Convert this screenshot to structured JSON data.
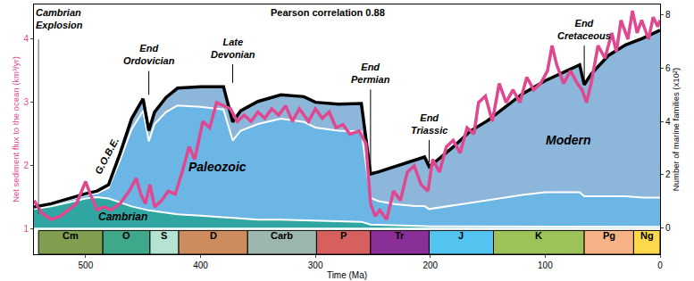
{
  "chart_data": {
    "type": "area",
    "stacked": true,
    "grid": false,
    "x_label": "Time (Ma)",
    "y_label": "Net sediment flux to the ocean (km³/yr)",
    "y2_label": "Number of marine families (x10²)",
    "xlim": [
      545,
      0
    ],
    "xticks": [
      500,
      400,
      300,
      200,
      100,
      0
    ],
    "ylim": [
      0.6,
      4.55
    ],
    "yticks": [
      1,
      2,
      3,
      4
    ],
    "y2lim": [
      -1.0,
      8.4
    ],
    "y2ticks": [
      0,
      2,
      4,
      6,
      8
    ],
    "annotations": [
      "Cambrian\nExplosion",
      "G.O.B.E.",
      "End\nOrdovician",
      "Late\nDevonian",
      "End\nPermian",
      "End\nTriassic",
      "End\nCretaceous",
      "Pearson correlation 0.88"
    ],
    "periods": [
      {
        "label": "Cm",
        "start": 541,
        "end": 485,
        "color": "#7f9e4f"
      },
      {
        "label": "O",
        "start": 485,
        "end": 444,
        "color": "#3fa88a"
      },
      {
        "label": "S",
        "start": 444,
        "end": 419,
        "color": "#b5e3d2"
      },
      {
        "label": "D",
        "start": 419,
        "end": 359,
        "color": "#cc8c5e"
      },
      {
        "label": "Carb",
        "start": 359,
        "end": 299,
        "color": "#9bb7ae"
      },
      {
        "label": "P",
        "start": 299,
        "end": 252,
        "color": "#d6605e"
      },
      {
        "label": "Tr",
        "start": 252,
        "end": 201,
        "color": "#8a2f97"
      },
      {
        "label": "J",
        "start": 201,
        "end": 145,
        "color": "#52c4ef"
      },
      {
        "label": "K",
        "start": 145,
        "end": 66,
        "color": "#9cc25a"
      },
      {
        "label": "Pg",
        "start": 66,
        "end": 23,
        "color": "#f7b387"
      },
      {
        "label": "Ng",
        "start": 23,
        "end": 0,
        "color": "#fdd84c"
      }
    ],
    "series": [
      {
        "name": "Cambrian",
        "axis": "y2",
        "color": "#2fa6a2",
        "x": [
          545,
          530,
          520,
          510,
          500,
          490,
          480,
          470,
          460,
          450,
          445,
          440,
          430,
          420,
          400,
          380,
          372,
          365,
          350,
          330,
          310,
          300,
          280,
          260,
          252,
          245,
          230,
          215,
          205,
          201,
          195,
          180,
          165,
          150,
          135,
          120,
          100,
          85,
          70,
          66,
          60,
          45,
          30,
          15,
          0
        ],
        "values": [
          0.7,
          0.8,
          0.9,
          1.0,
          1.1,
          1.15,
          1.1,
          0.95,
          0.8,
          0.7,
          0.65,
          0.6,
          0.55,
          0.5,
          0.45,
          0.4,
          0.38,
          0.35,
          0.3,
          0.3,
          0.28,
          0.27,
          0.25,
          0.22,
          0.12,
          0.1,
          0.08,
          0.07,
          0.06,
          0.05,
          0.05,
          0.04,
          0.04,
          0.03,
          0.03,
          0.03,
          0.03,
          0.03,
          0.03,
          0.03,
          0.03,
          0.03,
          0.03,
          0.03,
          0.03
        ]
      },
      {
        "name": "Paleozoic",
        "axis": "y2",
        "color": "#6cb6e6",
        "x": [
          545,
          530,
          520,
          510,
          500,
          490,
          480,
          470,
          460,
          450,
          445,
          440,
          430,
          420,
          400,
          380,
          372,
          365,
          350,
          330,
          310,
          300,
          280,
          260,
          252,
          245,
          230,
          215,
          205,
          201,
          195,
          180,
          165,
          150,
          135,
          120,
          100,
          85,
          70,
          66,
          60,
          45,
          30,
          15,
          0
        ],
        "values": [
          0.05,
          0.06,
          0.08,
          0.1,
          0.12,
          0.15,
          0.4,
          1.6,
          2.9,
          3.7,
          2.6,
          3.3,
          3.8,
          4.1,
          4.1,
          4.05,
          2.9,
          3.3,
          3.6,
          3.8,
          3.7,
          3.5,
          3.4,
          3.4,
          1.0,
          0.9,
          0.8,
          0.75,
          0.75,
          0.65,
          0.7,
          0.8,
          0.9,
          1.0,
          1.1,
          1.2,
          1.3,
          1.3,
          1.3,
          1.15,
          1.15,
          1.15,
          1.15,
          1.1,
          1.1
        ]
      },
      {
        "name": "Modern",
        "axis": "y2",
        "color": "#8cb6da",
        "x": [
          545,
          530,
          520,
          510,
          500,
          490,
          480,
          470,
          460,
          450,
          445,
          440,
          430,
          420,
          400,
          380,
          372,
          365,
          350,
          330,
          310,
          300,
          280,
          260,
          252,
          245,
          230,
          215,
          205,
          201,
          195,
          180,
          165,
          150,
          135,
          120,
          100,
          85,
          70,
          66,
          60,
          45,
          30,
          15,
          0
        ],
        "values": [
          0.03,
          0.04,
          0.05,
          0.05,
          0.06,
          0.08,
          0.12,
          0.25,
          0.4,
          0.45,
          0.4,
          0.45,
          0.55,
          0.65,
          0.75,
          0.85,
          0.7,
          0.75,
          0.85,
          0.9,
          0.95,
          0.95,
          1.0,
          1.05,
          0.9,
          1.1,
          1.4,
          1.7,
          1.85,
          1.6,
          1.75,
          2.2,
          2.7,
          3.0,
          3.4,
          3.8,
          4.2,
          4.5,
          4.8,
          4.2,
          4.6,
          5.3,
          5.7,
          6.0,
          6.3
        ]
      },
      {
        "name": "Net sediment flux to the ocean",
        "type": "line",
        "color": "#e0478f",
        "x": [
          545,
          538,
          530,
          522,
          515,
          508,
          500,
          496,
          490,
          484,
          478,
          470,
          462,
          456,
          452,
          448,
          444,
          440,
          434,
          428,
          422,
          416,
          410,
          405,
          398,
          392,
          386,
          380,
          374,
          368,
          362,
          356,
          350,
          344,
          338,
          332,
          326,
          320,
          314,
          306,
          300,
          294,
          288,
          282,
          276,
          270,
          262,
          256,
          252,
          248,
          244,
          238,
          232,
          226,
          220,
          214,
          208,
          202,
          198,
          192,
          186,
          180,
          174,
          168,
          162,
          158,
          152,
          146,
          140,
          134,
          128,
          122,
          116,
          110,
          104,
          98,
          94,
          90,
          84,
          78,
          72,
          68,
          64,
          60,
          54,
          48,
          42,
          38,
          34,
          28,
          24,
          20,
          16,
          10,
          6,
          2,
          0
        ],
        "values": [
          1.45,
          1.25,
          1.15,
          1.2,
          1.3,
          1.4,
          1.75,
          1.55,
          1.3,
          1.35,
          1.3,
          1.4,
          1.6,
          1.8,
          1.55,
          1.4,
          1.7,
          1.35,
          1.45,
          1.6,
          1.55,
          1.9,
          2.3,
          2.1,
          2.7,
          2.6,
          3.0,
          2.95,
          2.9,
          2.7,
          2.8,
          2.7,
          2.85,
          2.75,
          2.9,
          2.8,
          2.95,
          2.7,
          2.9,
          2.7,
          2.9,
          2.75,
          2.85,
          2.6,
          2.65,
          2.5,
          2.55,
          2.35,
          1.4,
          1.2,
          1.3,
          1.15,
          1.6,
          1.45,
          1.9,
          2.0,
          1.7,
          1.6,
          2.1,
          1.9,
          2.3,
          2.4,
          2.2,
          2.6,
          2.5,
          3.0,
          3.1,
          2.7,
          3.3,
          3.0,
          3.2,
          3.0,
          3.4,
          3.2,
          3.3,
          3.5,
          3.9,
          3.6,
          3.3,
          3.5,
          3.3,
          3.2,
          3.0,
          3.3,
          3.9,
          3.7,
          4.1,
          3.8,
          4.3,
          4.0,
          4.45,
          4.1,
          4.3,
          4.0,
          4.35,
          4.2,
          4.3
        ]
      }
    ]
  }
}
